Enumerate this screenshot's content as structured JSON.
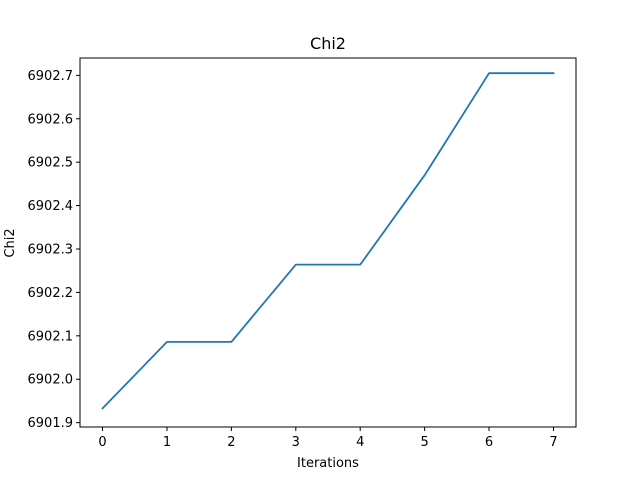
{
  "chart_data": {
    "type": "line",
    "title": "Chi2",
    "xlabel": "Iterations",
    "ylabel": "Chi2",
    "xlim": [
      -0.35,
      7.35
    ],
    "ylim": [
      6901.89,
      6902.74
    ],
    "xticks": [
      0,
      1,
      2,
      3,
      4,
      5,
      6,
      7
    ],
    "xtick_labels": [
      "0",
      "1",
      "2",
      "3",
      "4",
      "5",
      "6",
      "7"
    ],
    "yticks": [
      6901.9,
      6902.0,
      6902.1,
      6902.2,
      6902.3,
      6902.4,
      6902.5,
      6902.6,
      6902.7
    ],
    "ytick_labels": [
      "6901.9",
      "6902.0",
      "6902.1",
      "6902.2",
      "6902.3",
      "6902.4",
      "6902.5",
      "6902.6",
      "6902.7"
    ],
    "grid": false,
    "series": [
      {
        "color": "#1f77b4",
        "x": [
          0,
          1,
          2,
          3,
          4,
          5,
          6,
          7
        ],
        "y": [
          6901.933,
          6902.086,
          6902.086,
          6902.264,
          6902.264,
          6902.47,
          6902.705,
          6902.705
        ]
      }
    ]
  }
}
